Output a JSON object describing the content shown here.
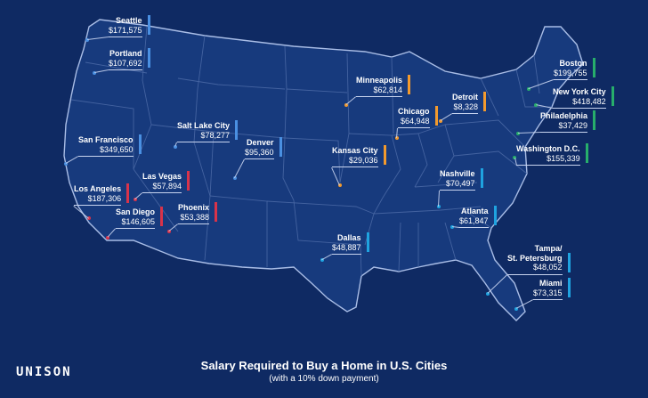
{
  "title": "Salary Required to Buy a Home in U.S. Cities",
  "subtitle": "(with a 10% down payment)",
  "logo_text": "UNISON",
  "colors": {
    "background": "#0f2a63",
    "land": "#173a7d",
    "west": "#d8334a",
    "northwest": "#4a90e2",
    "mountain": "#4a90e2",
    "midwest": "#f39a2d",
    "south": "#1fa3e0",
    "northeast": "#27ae6b"
  },
  "cities": [
    {
      "name": "Seattle",
      "salary": "$171,575",
      "color": "#4a90e2"
    },
    {
      "name": "Portland",
      "salary": "$107,692",
      "color": "#4a90e2"
    },
    {
      "name": "San Francisco",
      "salary": "$349,650",
      "color": "#4a90e2"
    },
    {
      "name": "Salt Lake City",
      "salary": "$78,277",
      "color": "#4a90e2"
    },
    {
      "name": "Denver",
      "salary": "$95,360",
      "color": "#4a90e2"
    },
    {
      "name": "Las Vegas",
      "salary": "$57,894",
      "color": "#d8334a"
    },
    {
      "name": "Los Angeles",
      "salary": "$187,306",
      "color": "#d8334a"
    },
    {
      "name": "San Diego",
      "salary": "$146,605",
      "color": "#d8334a"
    },
    {
      "name": "Phoenix",
      "salary": "$53,388",
      "color": "#d8334a"
    },
    {
      "name": "Minneapolis",
      "salary": "$62,814",
      "color": "#f39a2d"
    },
    {
      "name": "Detroit",
      "salary": "$8,328",
      "color": "#f39a2d"
    },
    {
      "name": "Chicago",
      "salary": "$64,948",
      "color": "#f39a2d"
    },
    {
      "name": "Kansas City",
      "salary": "$29,036",
      "color": "#f39a2d"
    },
    {
      "name": "Dallas",
      "salary": "$48,887",
      "color": "#1fa3e0"
    },
    {
      "name": "Nashville",
      "salary": "$70,497",
      "color": "#1fa3e0"
    },
    {
      "name": "Atlanta",
      "salary": "$61,847",
      "color": "#1fa3e0"
    },
    {
      "name": "Tampa/\nSt. Petersburg",
      "salary": "$48,052",
      "color": "#1fa3e0"
    },
    {
      "name": "Miami",
      "salary": "$73,315",
      "color": "#1fa3e0"
    },
    {
      "name": "Boston",
      "salary": "$199,755",
      "color": "#27ae6b"
    },
    {
      "name": "New York City",
      "salary": "$418,482",
      "color": "#27ae6b"
    },
    {
      "name": "Philadelphia",
      "salary": "$37,429",
      "color": "#27ae6b"
    },
    {
      "name": "Washington D.C.",
      "salary": "$155,339",
      "color": "#27ae6b"
    }
  ]
}
